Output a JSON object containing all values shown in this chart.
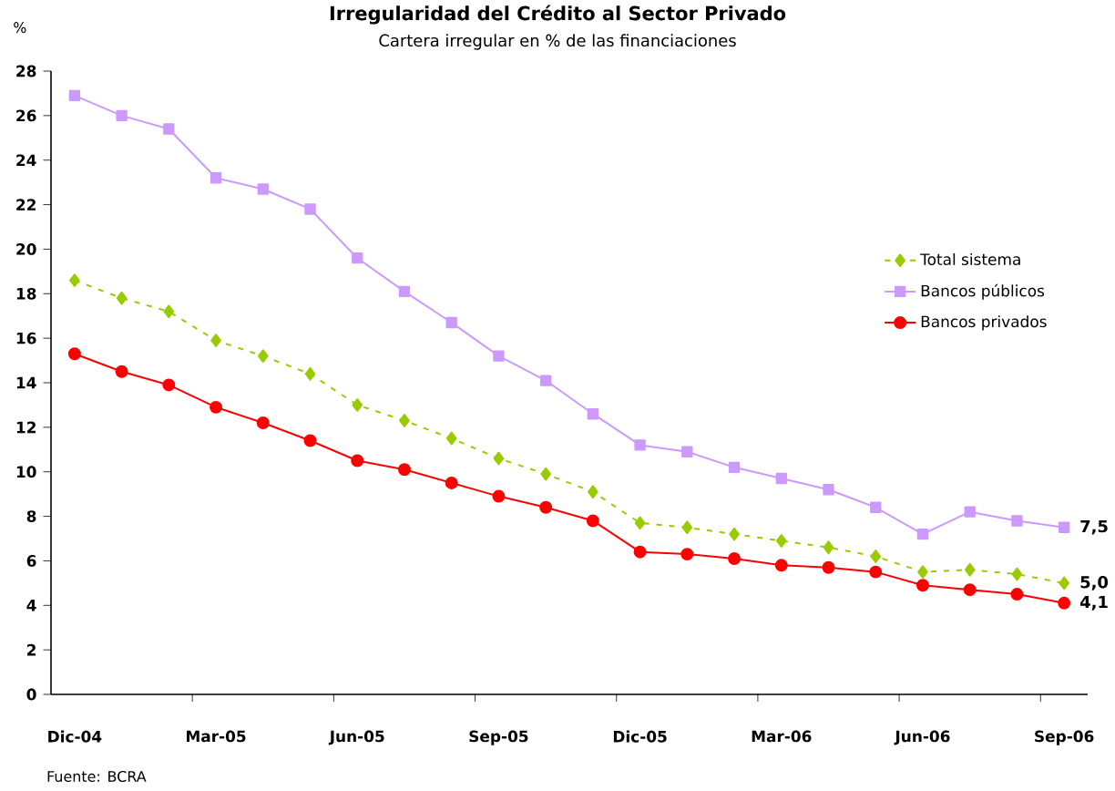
{
  "chart_data": {
    "type": "line",
    "title": "Irregularidad del Crédito al Sector Privado",
    "subtitle": "Cartera irregular en % de las financiaciones",
    "ylabel": "%",
    "categories": [
      "Dic-04",
      null,
      null,
      "Mar-05",
      null,
      null,
      "Jun-05",
      null,
      null,
      "Sep-05",
      null,
      null,
      "Dic-05",
      null,
      null,
      "Mar-06",
      null,
      null,
      "Jun-06",
      null,
      null,
      "Sep-06"
    ],
    "ylim": [
      0,
      28
    ],
    "yticks": [
      0,
      2,
      4,
      6,
      8,
      10,
      12,
      14,
      16,
      18,
      20,
      22,
      24,
      26,
      28
    ],
    "legend": "right",
    "annotations": [
      "Fuente: BCRA"
    ],
    "series": [
      {
        "name": "Total sistema",
        "color": "#99cc00",
        "marker": "diamond",
        "line_style": "dashed",
        "values": [
          18.6,
          17.8,
          17.2,
          15.9,
          15.2,
          14.4,
          13.0,
          12.3,
          11.5,
          10.6,
          9.9,
          9.1,
          7.7,
          7.5,
          7.2,
          6.9,
          6.6,
          6.2,
          5.5,
          5.6,
          5.4,
          5.0
        ],
        "value_labels": [
          null,
          null,
          null,
          null,
          null,
          null,
          null,
          null,
          null,
          null,
          null,
          null,
          null,
          null,
          null,
          null,
          null,
          null,
          null,
          null,
          null,
          "5,0"
        ]
      },
      {
        "name": "Bancos públicos",
        "color": "#cc99ff",
        "marker": "square",
        "line_style": "solid",
        "values": [
          26.9,
          26.0,
          25.4,
          23.2,
          22.7,
          21.8,
          19.6,
          18.1,
          16.7,
          15.2,
          14.1,
          12.6,
          11.2,
          10.9,
          10.2,
          9.7,
          9.2,
          8.4,
          7.2,
          8.2,
          7.8,
          7.5
        ],
        "value_labels": [
          null,
          null,
          null,
          null,
          null,
          null,
          null,
          null,
          null,
          null,
          null,
          null,
          null,
          null,
          null,
          null,
          null,
          null,
          null,
          null,
          null,
          "7,5"
        ]
      },
      {
        "name": "Bancos privados",
        "color": "#ff0000",
        "marker": "circle",
        "line_style": "solid",
        "values": [
          15.3,
          14.5,
          13.9,
          12.9,
          12.2,
          11.4,
          10.5,
          10.1,
          9.5,
          8.9,
          8.4,
          7.8,
          6.4,
          6.3,
          6.1,
          5.8,
          5.7,
          5.5,
          4.9,
          4.7,
          4.5,
          4.1
        ],
        "value_labels": [
          null,
          null,
          null,
          null,
          null,
          null,
          null,
          null,
          null,
          null,
          null,
          null,
          null,
          null,
          null,
          null,
          null,
          null,
          null,
          null,
          null,
          "4,1"
        ]
      }
    ]
  }
}
